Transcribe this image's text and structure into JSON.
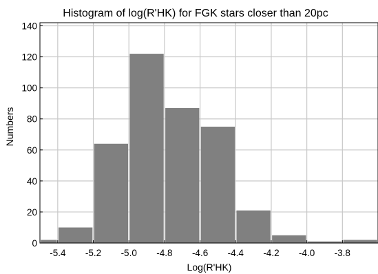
{
  "chart_data": {
    "type": "bar",
    "title": "Histogram of log(R'HK) for FGK stars closer than 20pc",
    "xlabel": "Log(R'HK)",
    "ylabel": "Numbers",
    "xlim": [
      -5.5,
      -3.6
    ],
    "ylim": [
      0,
      142
    ],
    "xticks": [
      -5.4,
      -5.2,
      -5.0,
      -4.8,
      -4.6,
      -4.4,
      -4.2,
      -4.0,
      -3.8
    ],
    "xtick_labels": [
      "-5.4",
      "-5.2",
      "-5.0",
      "-4.8",
      "-4.6",
      "-4.4",
      "-4.2",
      "-4.0",
      "-3.8"
    ],
    "yticks": [
      0,
      20,
      40,
      60,
      80,
      100,
      120,
      140
    ],
    "ytick_labels": [
      "0",
      "20",
      "40",
      "60",
      "80",
      "100",
      "120",
      "140"
    ],
    "grid": true,
    "bar_color": "#808080",
    "bin_edges": [
      -5.6,
      -5.4,
      -5.2,
      -5.0,
      -4.8,
      -4.6,
      -4.4,
      -4.2,
      -4.0,
      -3.8,
      -3.6
    ],
    "bin_edges_note_removed": true,
    "values": [
      2,
      10,
      64,
      122,
      87,
      75,
      21,
      5,
      1,
      2
    ]
  }
}
